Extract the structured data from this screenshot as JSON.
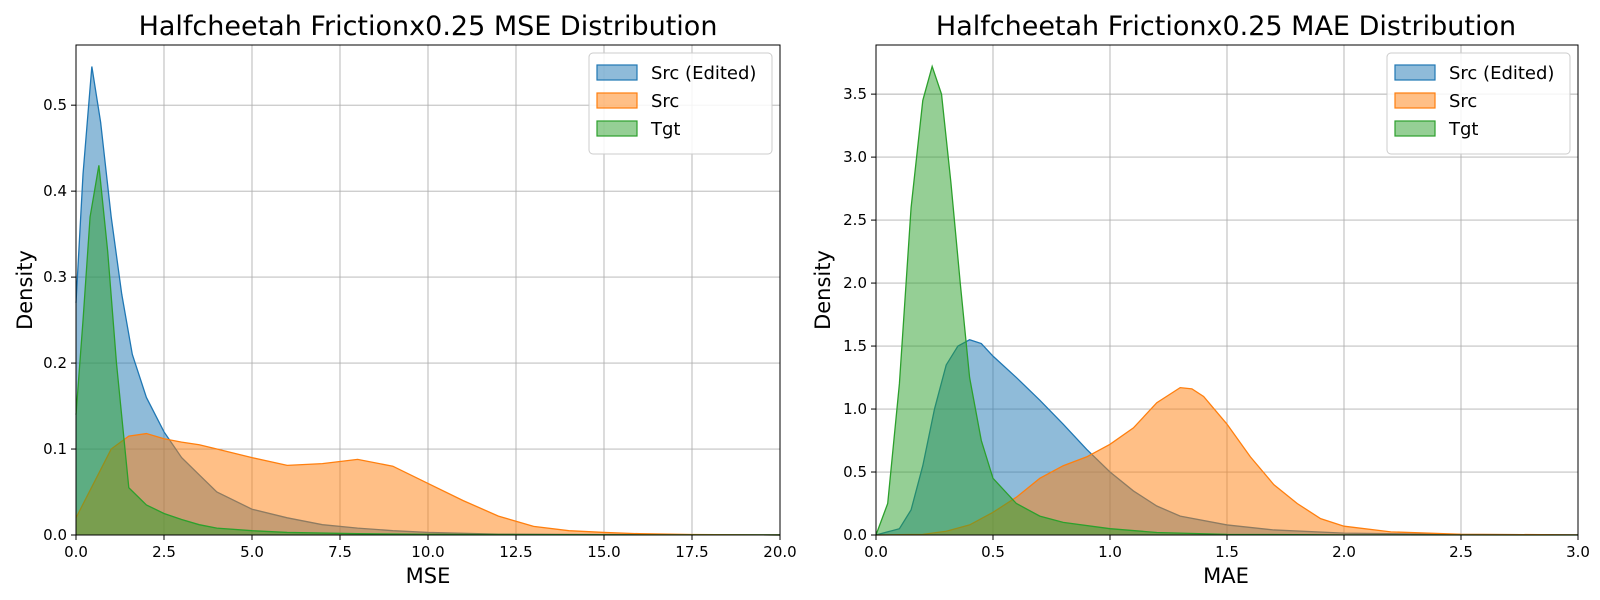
{
  "chart_data": [
    {
      "type": "area",
      "title": "Halfcheetah Frictionx0.25 MSE Distribution",
      "xlabel": "MSE",
      "ylabel": "Density",
      "xlim": [
        0,
        20
      ],
      "ylim": [
        0,
        0.57
      ],
      "xticks": [
        0,
        2.5,
        5,
        7.5,
        10,
        12.5,
        15,
        17.5,
        20
      ],
      "xtick_labels": [
        "0.0",
        "2.5",
        "5.0",
        "7.5",
        "10.0",
        "12.5",
        "15.0",
        "17.5",
        "20.0"
      ],
      "yticks": [
        0,
        0.1,
        0.2,
        0.3,
        0.4,
        0.5
      ],
      "ytick_labels": [
        "0.0",
        "0.1",
        "0.2",
        "0.3",
        "0.4",
        "0.5"
      ],
      "grid": true,
      "legend": "top-right",
      "series": [
        {
          "name": "Src (Edited)",
          "color": "#1f77b4",
          "x": [
            0,
            0.2,
            0.45,
            0.7,
            1.0,
            1.3,
            1.6,
            2.0,
            2.5,
            3.0,
            3.5,
            4.0,
            5.0,
            6.0,
            7.0,
            8.0,
            9.0,
            10.0,
            12.0,
            15.0,
            17.5,
            20.0
          ],
          "y": [
            0.27,
            0.42,
            0.545,
            0.48,
            0.37,
            0.28,
            0.21,
            0.16,
            0.12,
            0.09,
            0.07,
            0.05,
            0.03,
            0.02,
            0.012,
            0.008,
            0.005,
            0.003,
            0.001,
            0.0005,
            0.0002,
            0.0001
          ]
        },
        {
          "name": "Src",
          "color": "#ff7f0e",
          "x": [
            0,
            0.5,
            1.0,
            1.5,
            2.0,
            2.5,
            3.0,
            3.5,
            4.0,
            5.0,
            6.0,
            7.0,
            8.0,
            9.0,
            10.0,
            11.0,
            12.0,
            13.0,
            14.0,
            15.0,
            16.0,
            17.5,
            20.0
          ],
          "y": [
            0.02,
            0.06,
            0.1,
            0.115,
            0.118,
            0.112,
            0.108,
            0.105,
            0.1,
            0.09,
            0.081,
            0.083,
            0.088,
            0.08,
            0.06,
            0.04,
            0.022,
            0.01,
            0.005,
            0.003,
            0.0015,
            0.0005,
            0.0001
          ]
        },
        {
          "name": "Tgt",
          "color": "#2ca02c",
          "x": [
            0,
            0.2,
            0.4,
            0.65,
            0.9,
            1.15,
            1.5,
            2.0,
            2.5,
            3.0,
            3.5,
            4.0,
            5.0,
            6.0,
            8.0,
            10.0,
            15.0,
            20.0
          ],
          "y": [
            0.14,
            0.25,
            0.37,
            0.43,
            0.33,
            0.2,
            0.055,
            0.035,
            0.025,
            0.018,
            0.012,
            0.008,
            0.005,
            0.003,
            0.0015,
            0.0008,
            0.0002,
            0.0001
          ]
        }
      ]
    },
    {
      "type": "area",
      "title": "Halfcheetah Frictionx0.25 MAE Distribution",
      "xlabel": "MAE",
      "ylabel": "Density",
      "xlim": [
        0,
        3
      ],
      "ylim": [
        0,
        3.89
      ],
      "xticks": [
        0,
        0.5,
        1.0,
        1.5,
        2.0,
        2.5,
        3.0
      ],
      "xtick_labels": [
        "0.0",
        "0.5",
        "1.0",
        "1.5",
        "2.0",
        "2.5",
        "3.0"
      ],
      "yticks": [
        0,
        0.5,
        1.0,
        1.5,
        2.0,
        2.5,
        3.0,
        3.5
      ],
      "ytick_labels": [
        "0.0",
        "0.5",
        "1.0",
        "1.5",
        "2.0",
        "2.5",
        "3.0",
        "3.5"
      ],
      "grid": true,
      "legend": "top-right",
      "series": [
        {
          "name": "Src (Edited)",
          "color": "#1f77b4",
          "x": [
            0.0,
            0.1,
            0.15,
            0.2,
            0.25,
            0.3,
            0.35,
            0.4,
            0.45,
            0.5,
            0.6,
            0.7,
            0.8,
            0.9,
            1.0,
            1.1,
            1.2,
            1.3,
            1.5,
            1.7,
            2.0,
            2.5,
            3.0
          ],
          "y": [
            0.0,
            0.05,
            0.2,
            0.55,
            1.0,
            1.35,
            1.5,
            1.55,
            1.52,
            1.42,
            1.25,
            1.07,
            0.88,
            0.68,
            0.5,
            0.35,
            0.23,
            0.15,
            0.08,
            0.04,
            0.015,
            0.004,
            0.001
          ]
        },
        {
          "name": "Src",
          "color": "#ff7f0e",
          "x": [
            0.0,
            0.2,
            0.3,
            0.4,
            0.5,
            0.6,
            0.7,
            0.8,
            0.9,
            1.0,
            1.1,
            1.2,
            1.3,
            1.35,
            1.4,
            1.5,
            1.6,
            1.7,
            1.8,
            1.9,
            2.0,
            2.2,
            2.5,
            3.0
          ],
          "y": [
            0.0,
            0.005,
            0.03,
            0.08,
            0.18,
            0.3,
            0.45,
            0.55,
            0.62,
            0.72,
            0.85,
            1.05,
            1.17,
            1.16,
            1.1,
            0.88,
            0.62,
            0.4,
            0.25,
            0.13,
            0.07,
            0.025,
            0.006,
            0.001
          ]
        },
        {
          "name": "Tgt",
          "color": "#2ca02c",
          "x": [
            0.0,
            0.05,
            0.1,
            0.15,
            0.2,
            0.24,
            0.28,
            0.32,
            0.36,
            0.4,
            0.45,
            0.5,
            0.6,
            0.7,
            0.8,
            1.0,
            1.2,
            1.5,
            2.0,
            3.0
          ],
          "y": [
            0.0,
            0.25,
            1.2,
            2.6,
            3.45,
            3.72,
            3.5,
            2.8,
            2.0,
            1.25,
            0.75,
            0.45,
            0.25,
            0.15,
            0.1,
            0.05,
            0.02,
            0.005,
            0.001,
            0.0
          ]
        }
      ]
    }
  ]
}
